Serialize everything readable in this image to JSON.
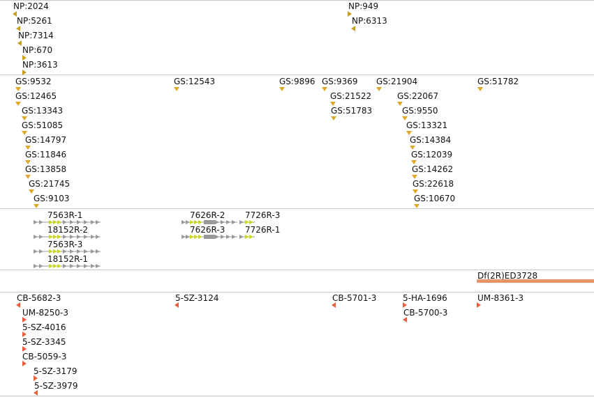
{
  "colors": {
    "separator": "#c8c8c8",
    "np_marker": "#c8a020",
    "gs_marker": "#e0a828",
    "transposon_marker": "#e86040",
    "gene_arrow_gray": "#999999",
    "gene_arrow_yellow": "#c8d820",
    "deficiency_bar": "#e8956a"
  },
  "tracks": {
    "np": {
      "items": [
        {
          "label": "NP:2024",
          "marker": "left"
        },
        {
          "label": "NP:5261",
          "marker": "left"
        },
        {
          "label": "NP:7314",
          "marker": "left"
        },
        {
          "label": "NP:670",
          "marker": "right"
        },
        {
          "label": "NP:3613",
          "marker": "right"
        },
        {
          "label": "NP:949",
          "marker": "right"
        },
        {
          "label": "NP:6313",
          "marker": "left"
        }
      ]
    },
    "gs": {
      "items": [
        {
          "label": "GS:9532"
        },
        {
          "label": "GS:12465"
        },
        {
          "label": "GS:13343"
        },
        {
          "label": "GS:51085"
        },
        {
          "label": "GS:14797"
        },
        {
          "label": "GS:11846"
        },
        {
          "label": "GS:13858"
        },
        {
          "label": "GS:21745"
        },
        {
          "label": "GS:9103"
        },
        {
          "label": "GS:12543"
        },
        {
          "label": "GS:9896"
        },
        {
          "label": "GS:9369"
        },
        {
          "label": "GS:21522"
        },
        {
          "label": "GS:51783"
        },
        {
          "label": "GS:21904"
        },
        {
          "label": "GS:22067"
        },
        {
          "label": "GS:9550"
        },
        {
          "label": "GS:13321"
        },
        {
          "label": "GS:14384"
        },
        {
          "label": "GS:12039"
        },
        {
          "label": "GS:14262"
        },
        {
          "label": "GS:22618"
        },
        {
          "label": "GS:10670"
        },
        {
          "label": "GS:51782"
        }
      ]
    },
    "genes": {
      "items": [
        {
          "label": "7563R-1"
        },
        {
          "label": "18152R-2"
        },
        {
          "label": "7563R-3"
        },
        {
          "label": "18152R-1"
        },
        {
          "label": "7626R-2"
        },
        {
          "label": "7626R-3"
        },
        {
          "label": "7726R-3"
        },
        {
          "label": "7726R-1"
        }
      ]
    },
    "deficiency": {
      "items": [
        {
          "label": "Df(2R)ED3728"
        }
      ]
    },
    "transposons": {
      "items": [
        {
          "label": "CB-5682-3",
          "marker": "left"
        },
        {
          "label": "UM-8250-3",
          "marker": "right"
        },
        {
          "label": "5-SZ-4016",
          "marker": "right"
        },
        {
          "label": "5-SZ-3345",
          "marker": "right"
        },
        {
          "label": "CB-5059-3",
          "marker": "right"
        },
        {
          "label": "5-SZ-3179",
          "marker": "right"
        },
        {
          "label": "5-SZ-3979",
          "marker": "left"
        },
        {
          "label": "5-SZ-3124",
          "marker": "left"
        },
        {
          "label": "CB-5701-3",
          "marker": "left"
        },
        {
          "label": "5-HA-1696",
          "marker": "right"
        },
        {
          "label": "CB-5700-3",
          "marker": "left"
        },
        {
          "label": "UM-8361-3",
          "marker": "right"
        }
      ]
    }
  }
}
